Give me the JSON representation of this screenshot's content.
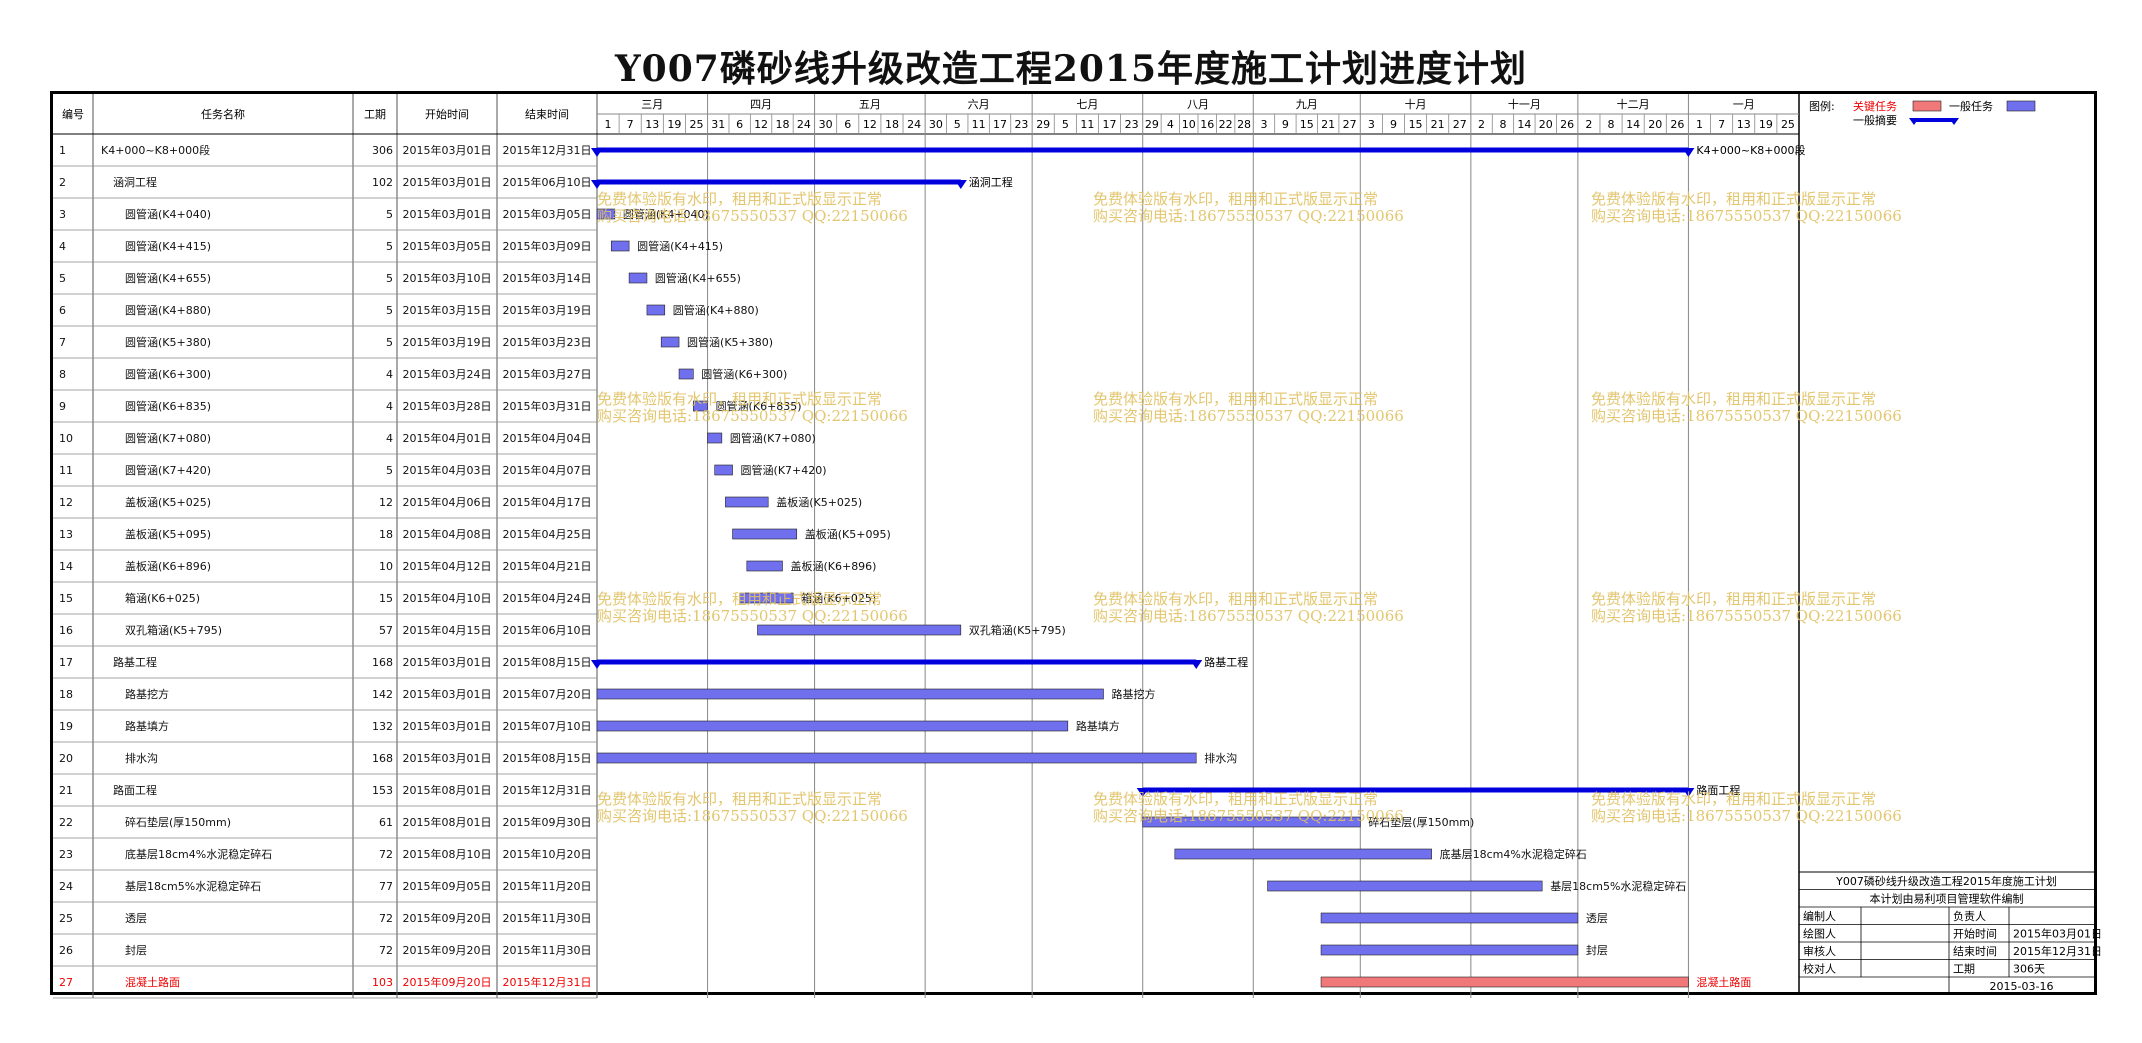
{
  "title": "Y007磷砂线升级改造工程2015年度施工计划进度计划",
  "columns": {
    "id": "编号",
    "name": "任务名称",
    "duration": "工期",
    "start": "开始时间",
    "end": "结束时间"
  },
  "timeline": {
    "months": [
      "三月",
      "四月",
      "五月",
      "六月",
      "七月",
      "八月",
      "九月",
      "十月",
      "十一月",
      "十二月",
      "一月"
    ],
    "day_ticks": [
      [
        "1",
        "7",
        "13",
        "19",
        "25"
      ],
      [
        "31",
        "6",
        "12",
        "18",
        "24"
      ],
      [
        "30",
        "6",
        "12",
        "18",
        "24"
      ],
      [
        "30",
        "5",
        "11",
        "17",
        "23"
      ],
      [
        "29",
        "5",
        "11",
        "17",
        "23"
      ],
      [
        "29",
        "4",
        "10",
        "16",
        "22",
        "28"
      ],
      [
        "3",
        "9",
        "15",
        "21",
        "27"
      ],
      [
        "3",
        "9",
        "15",
        "21",
        "27"
      ],
      [
        "2",
        "8",
        "14",
        "20",
        "26"
      ],
      [
        "2",
        "8",
        "14",
        "20",
        "26"
      ],
      [
        "1",
        "7",
        "13",
        "19",
        "25"
      ]
    ],
    "range_start": "2015-03-01",
    "range_end": "2016-01-31"
  },
  "tasks": [
    {
      "id": "1",
      "name": "K4+000~K8+000段",
      "level": 0,
      "duration": "306",
      "start": "2015年03月01日",
      "end": "2015年12月31日",
      "start_date": "2015-03-01",
      "end_date": "2015-12-31",
      "kind": "summary",
      "label": "K4+000~K8+000段"
    },
    {
      "id": "2",
      "name": "涵洞工程",
      "level": 1,
      "duration": "102",
      "start": "2015年03月01日",
      "end": "2015年06月10日",
      "start_date": "2015-03-01",
      "end_date": "2015-06-10",
      "kind": "summary",
      "label": "涵洞工程"
    },
    {
      "id": "3",
      "name": "圆管涵(K4+040)",
      "level": 2,
      "duration": "5",
      "start": "2015年03月01日",
      "end": "2015年03月05日",
      "start_date": "2015-03-01",
      "end_date": "2015-03-05",
      "kind": "task",
      "label": "圆管涵(K4+040)"
    },
    {
      "id": "4",
      "name": "圆管涵(K4+415)",
      "level": 2,
      "duration": "5",
      "start": "2015年03月05日",
      "end": "2015年03月09日",
      "start_date": "2015-03-05",
      "end_date": "2015-03-09",
      "kind": "task",
      "label": "圆管涵(K4+415)"
    },
    {
      "id": "5",
      "name": "圆管涵(K4+655)",
      "level": 2,
      "duration": "5",
      "start": "2015年03月10日",
      "end": "2015年03月14日",
      "start_date": "2015-03-10",
      "end_date": "2015-03-14",
      "kind": "task",
      "label": "圆管涵(K4+655)"
    },
    {
      "id": "6",
      "name": "圆管涵(K4+880)",
      "level": 2,
      "duration": "5",
      "start": "2015年03月15日",
      "end": "2015年03月19日",
      "start_date": "2015-03-15",
      "end_date": "2015-03-19",
      "kind": "task",
      "label": "圆管涵(K4+880)"
    },
    {
      "id": "7",
      "name": "圆管涵(K5+380)",
      "level": 2,
      "duration": "5",
      "start": "2015年03月19日",
      "end": "2015年03月23日",
      "start_date": "2015-03-19",
      "end_date": "2015-03-23",
      "kind": "task",
      "label": "圆管涵(K5+380)"
    },
    {
      "id": "8",
      "name": "圆管涵(K6+300)",
      "level": 2,
      "duration": "4",
      "start": "2015年03月24日",
      "end": "2015年03月27日",
      "start_date": "2015-03-24",
      "end_date": "2015-03-27",
      "kind": "task",
      "label": "圆管涵(K6+300)"
    },
    {
      "id": "9",
      "name": "圆管涵(K6+835)",
      "level": 2,
      "duration": "4",
      "start": "2015年03月28日",
      "end": "2015年03月31日",
      "start_date": "2015-03-28",
      "end_date": "2015-03-31",
      "kind": "task",
      "label": "圆管涵(K6+835)"
    },
    {
      "id": "10",
      "name": "圆管涵(K7+080)",
      "level": 2,
      "duration": "4",
      "start": "2015年04月01日",
      "end": "2015年04月04日",
      "start_date": "2015-04-01",
      "end_date": "2015-04-04",
      "kind": "task",
      "label": "圆管涵(K7+080)"
    },
    {
      "id": "11",
      "name": "圆管涵(K7+420)",
      "level": 2,
      "duration": "5",
      "start": "2015年04月03日",
      "end": "2015年04月07日",
      "start_date": "2015-04-03",
      "end_date": "2015-04-07",
      "kind": "task",
      "label": "圆管涵(K7+420)"
    },
    {
      "id": "12",
      "name": "盖板涵(K5+025)",
      "level": 2,
      "duration": "12",
      "start": "2015年04月06日",
      "end": "2015年04月17日",
      "start_date": "2015-04-06",
      "end_date": "2015-04-17",
      "kind": "task",
      "label": "盖板涵(K5+025)"
    },
    {
      "id": "13",
      "name": "盖板涵(K5+095)",
      "level": 2,
      "duration": "18",
      "start": "2015年04月08日",
      "end": "2015年04月25日",
      "start_date": "2015-04-08",
      "end_date": "2015-04-25",
      "kind": "task",
      "label": "盖板涵(K5+095)"
    },
    {
      "id": "14",
      "name": "盖板涵(K6+896)",
      "level": 2,
      "duration": "10",
      "start": "2015年04月12日",
      "end": "2015年04月21日",
      "start_date": "2015-04-12",
      "end_date": "2015-04-21",
      "kind": "task",
      "label": "盖板涵(K6+896)"
    },
    {
      "id": "15",
      "name": "箱涵(K6+025)",
      "level": 2,
      "duration": "15",
      "start": "2015年04月10日",
      "end": "2015年04月24日",
      "start_date": "2015-04-10",
      "end_date": "2015-04-24",
      "kind": "task",
      "label": "箱涵(K6+025)"
    },
    {
      "id": "16",
      "name": "双孔箱涵(K5+795)",
      "level": 2,
      "duration": "57",
      "start": "2015年04月15日",
      "end": "2015年06月10日",
      "start_date": "2015-04-15",
      "end_date": "2015-06-10",
      "kind": "task",
      "label": "双孔箱涵(K5+795)"
    },
    {
      "id": "17",
      "name": "路基工程",
      "level": 1,
      "duration": "168",
      "start": "2015年03月01日",
      "end": "2015年08月15日",
      "start_date": "2015-03-01",
      "end_date": "2015-08-15",
      "kind": "summary",
      "label": "路基工程"
    },
    {
      "id": "18",
      "name": "路基挖方",
      "level": 2,
      "duration": "142",
      "start": "2015年03月01日",
      "end": "2015年07月20日",
      "start_date": "2015-03-01",
      "end_date": "2015-07-20",
      "kind": "task",
      "label": "路基挖方"
    },
    {
      "id": "19",
      "name": "路基填方",
      "level": 2,
      "duration": "132",
      "start": "2015年03月01日",
      "end": "2015年07月10日",
      "start_date": "2015-03-01",
      "end_date": "2015-07-10",
      "kind": "task",
      "label": "路基填方"
    },
    {
      "id": "20",
      "name": "排水沟",
      "level": 2,
      "duration": "168",
      "start": "2015年03月01日",
      "end": "2015年08月15日",
      "start_date": "2015-03-01",
      "end_date": "2015-08-15",
      "kind": "task",
      "label": "排水沟"
    },
    {
      "id": "21",
      "name": "路面工程",
      "level": 1,
      "duration": "153",
      "start": "2015年08月01日",
      "end": "2015年12月31日",
      "start_date": "2015-08-01",
      "end_date": "2015-12-31",
      "kind": "summary",
      "label": "路面工程"
    },
    {
      "id": "22",
      "name": "碎石垫层(厚150mm)",
      "level": 2,
      "duration": "61",
      "start": "2015年08月01日",
      "end": "2015年09月30日",
      "start_date": "2015-08-01",
      "end_date": "2015-09-30",
      "kind": "task",
      "label": "碎石垫层(厚150mm)"
    },
    {
      "id": "23",
      "name": "底基层18cm4%水泥稳定碎石",
      "level": 2,
      "duration": "72",
      "start": "2015年08月10日",
      "end": "2015年10月20日",
      "start_date": "2015-08-10",
      "end_date": "2015-10-20",
      "kind": "task",
      "label": "底基层18cm4%水泥稳定碎石"
    },
    {
      "id": "24",
      "name": "基层18cm5%水泥稳定碎石",
      "level": 2,
      "duration": "77",
      "start": "2015年09月05日",
      "end": "2015年11月20日",
      "start_date": "2015-09-05",
      "end_date": "2015-11-20",
      "kind": "task",
      "label": "基层18cm5%水泥稳定碎石"
    },
    {
      "id": "25",
      "name": "透层",
      "level": 2,
      "duration": "72",
      "start": "2015年09月20日",
      "end": "2015年11月30日",
      "start_date": "2015-09-20",
      "end_date": "2015-11-30",
      "kind": "task",
      "label": "透层"
    },
    {
      "id": "26",
      "name": "封层",
      "level": 2,
      "duration": "72",
      "start": "2015年09月20日",
      "end": "2015年11月30日",
      "start_date": "2015-09-20",
      "end_date": "2015-11-30",
      "kind": "task",
      "label": "封层"
    },
    {
      "id": "27",
      "name": "混凝土路面",
      "level": 2,
      "duration": "103",
      "start": "2015年09月20日",
      "end": "2015年12月31日",
      "start_date": "2015-09-20",
      "end_date": "2015-12-31",
      "kind": "critical",
      "label": "混凝土路面"
    }
  ],
  "legend": {
    "title": "图例:",
    "critical": "关键任务",
    "normal": "一般任务",
    "summary": "一般摘要"
  },
  "info_box": {
    "title": "Y007磷砂线升级改造工程2015年度施工计划",
    "subtitle": "本计划由易利项目管理软件编制",
    "rows": [
      {
        "label": "编制人",
        "value": "",
        "label2": "负责人",
        "value2": ""
      },
      {
        "label": "绘图人",
        "value": "",
        "label2": "开始时间",
        "value2": "2015年03月01日"
      },
      {
        "label": "审核人",
        "value": "",
        "label2": "结束时间",
        "value2": "2015年12月31日"
      },
      {
        "label": "校对人",
        "value": "",
        "label2": "工期",
        "value2": "306天"
      }
    ],
    "date": "2015-03-16"
  },
  "watermark": {
    "line1": "免费体验版有水印，租用和正式版显示正常",
    "line2": "购买咨询电话:18675550537 QQ:22150066"
  },
  "colors": {
    "summary": "#0000dd",
    "task": "#7070ee",
    "critical": "#f07878",
    "critical_text": "#ee0000",
    "grid": "#999999",
    "watermark": "#e0c060"
  }
}
